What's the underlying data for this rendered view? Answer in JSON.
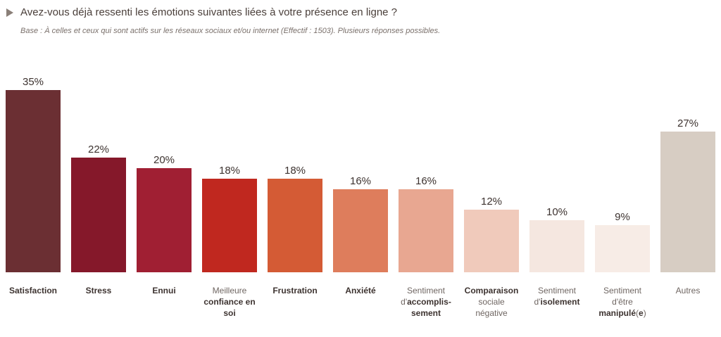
{
  "header": {
    "title": "Avez-vous déjà ressenti les émotions suivantes liées à votre présence en ligne ?",
    "subtitle": "Base : À celles et ceux qui sont actifs sur les réseaux sociaux et/ou internet (Effectif : 1503). Plusieurs réponses possibles.",
    "icon": "triangle-right-icon"
  },
  "chart_data": {
    "type": "bar",
    "ylim": [
      0,
      35
    ],
    "grid": false,
    "unit": "%",
    "categories": [
      {
        "parts": [
          {
            "t": "Satisfaction",
            "b": true
          }
        ]
      },
      {
        "parts": [
          {
            "t": "Stress",
            "b": true
          }
        ]
      },
      {
        "parts": [
          {
            "t": "Ennui",
            "b": true
          }
        ]
      },
      {
        "parts": [
          {
            "t": "Meilleure",
            "b": false
          },
          {
            "br": true
          },
          {
            "t": "confiance en soi",
            "b": true
          }
        ]
      },
      {
        "parts": [
          {
            "t": "Frustration",
            "b": true
          }
        ]
      },
      {
        "parts": [
          {
            "t": "Anxiété",
            "b": true
          }
        ]
      },
      {
        "parts": [
          {
            "t": "Sentiment",
            "b": false
          },
          {
            "br": true
          },
          {
            "t": "d'",
            "b": false
          },
          {
            "t": "accomplis-",
            "b": true
          },
          {
            "br": true
          },
          {
            "t": "sement",
            "b": true
          }
        ]
      },
      {
        "parts": [
          {
            "t": "Comparaison",
            "b": true
          },
          {
            "br": true
          },
          {
            "t": "sociale",
            "b": false
          },
          {
            "br": true
          },
          {
            "t": "négative",
            "b": false
          }
        ]
      },
      {
        "parts": [
          {
            "t": "Sentiment",
            "b": false
          },
          {
            "br": true
          },
          {
            "t": "d'",
            "b": false
          },
          {
            "t": "isolement",
            "b": true
          }
        ]
      },
      {
        "parts": [
          {
            "t": "Sentiment",
            "b": false
          },
          {
            "br": true
          },
          {
            "t": "d'être",
            "b": false
          },
          {
            "br": true
          },
          {
            "t": "manipulé",
            "b": true
          },
          {
            "t": "(",
            "b": false
          },
          {
            "t": "e",
            "b": true
          },
          {
            "t": ")",
            "b": false
          }
        ]
      },
      {
        "parts": [
          {
            "t": "Autres",
            "b": false
          }
        ]
      }
    ],
    "values": [
      35,
      22,
      20,
      18,
      18,
      16,
      16,
      12,
      10,
      9,
      27
    ],
    "value_labels": [
      "35%",
      "22%",
      "20%",
      "18%",
      "18%",
      "16%",
      "16%",
      "12%",
      "10%",
      "9%",
      "27%"
    ],
    "colors": [
      "#6b2f33",
      "#85182a",
      "#a01f33",
      "#c0281f",
      "#d45b35",
      "#de7d5c",
      "#e8a791",
      "#f0cabb",
      "#f5e7e0",
      "#f7ece6",
      "#d7cdc3"
    ]
  }
}
